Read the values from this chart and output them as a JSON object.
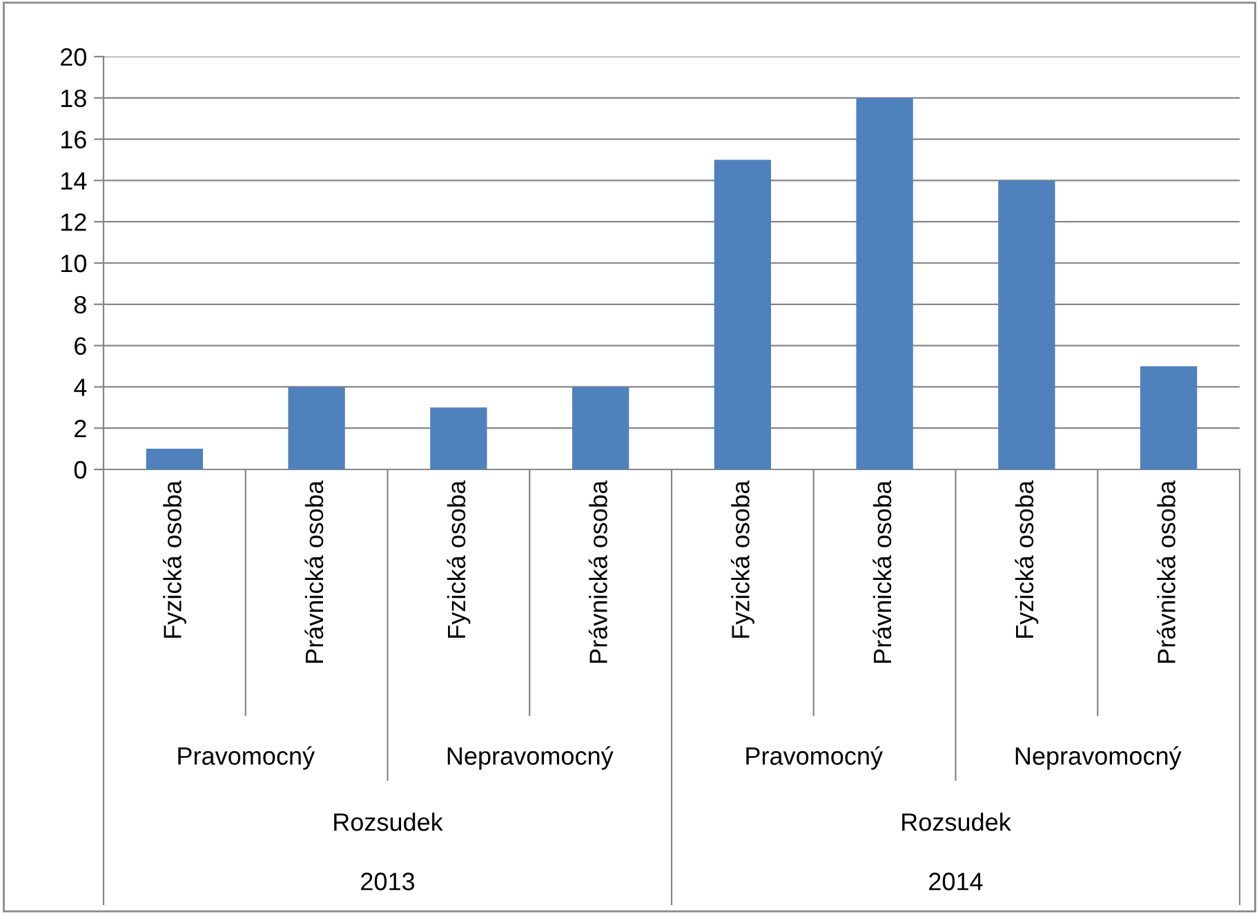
{
  "chart_data": {
    "type": "bar",
    "categories": [
      "Fyzická osoba",
      "Právnická osoba",
      "Fyzická osoba",
      "Právnická osoba",
      "Fyzická osoba",
      "Právnická osoba",
      "Fyzická osoba",
      "Právnická osoba"
    ],
    "values": [
      1,
      4,
      3,
      4,
      15,
      18,
      14,
      5
    ],
    "color": "#4f81bd",
    "annotations": [
      "Pravomocný",
      "Nepravomocný",
      "Pravomocný",
      "Nepravomocný",
      "Rozsudek",
      "Rozsudek",
      "2013",
      "2014"
    ],
    "ylim": [
      0,
      20
    ],
    "yticks": [
      0,
      2,
      4,
      6,
      8,
      10,
      12,
      14,
      16,
      18,
      20
    ],
    "grid": "y",
    "legend": false
  }
}
